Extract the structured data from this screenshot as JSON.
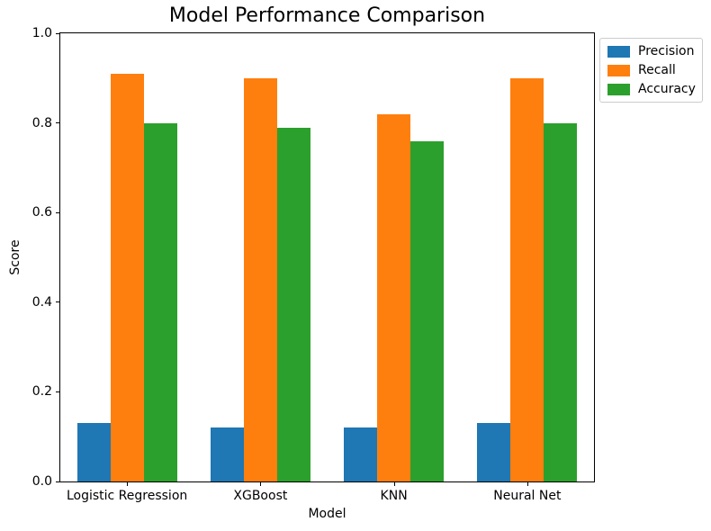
{
  "chart_data": {
    "type": "bar",
    "title": "Model Performance Comparison",
    "xlabel": "Model",
    "ylabel": "Score",
    "categories": [
      "Logistic Regression",
      "XGBoost",
      "KNN",
      "Neural Net"
    ],
    "series": [
      {
        "name": "Precision",
        "color": "#1f77b4",
        "values": [
          0.13,
          0.12,
          0.12,
          0.13
        ]
      },
      {
        "name": "Recall",
        "color": "#ff7f0e",
        "values": [
          0.91,
          0.9,
          0.82,
          0.9
        ]
      },
      {
        "name": "Accuracy",
        "color": "#2ca02c",
        "values": [
          0.8,
          0.79,
          0.76,
          0.8
        ]
      }
    ],
    "ylim": [
      0.0,
      1.0
    ],
    "yticks": [
      "0.0",
      "0.2",
      "0.4",
      "0.6",
      "0.8",
      "1.0"
    ],
    "grid": false,
    "legend_position": "upper-right-outside"
  }
}
